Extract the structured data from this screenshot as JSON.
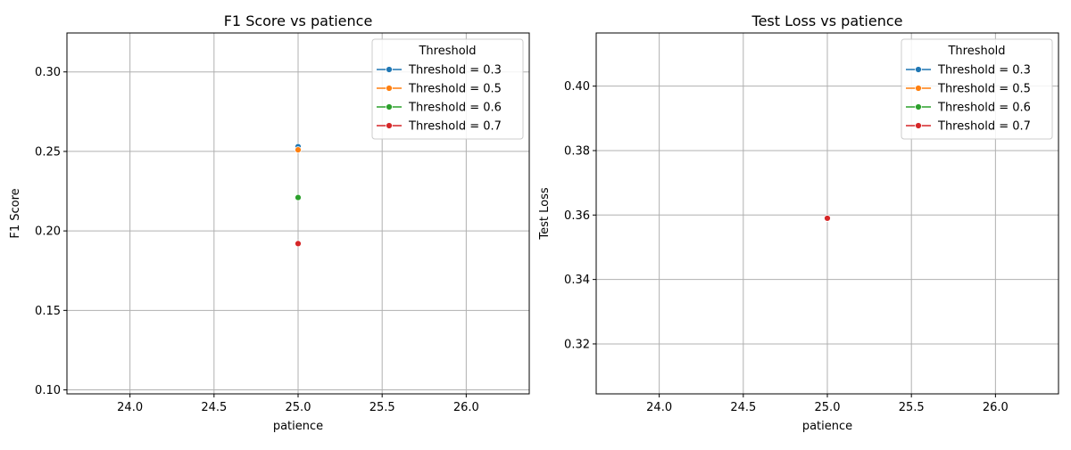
{
  "chart_data": [
    {
      "type": "line",
      "title": "F1 Score vs patience",
      "xlabel": "patience",
      "ylabel": "F1 Score",
      "xlim": [
        23.625,
        26.375
      ],
      "ylim": [
        0.0975,
        0.3245
      ],
      "xticks": [
        "24.0",
        "24.5",
        "25.0",
        "25.5",
        "26.0"
      ],
      "xtick_values": [
        24.0,
        24.5,
        25.0,
        25.5,
        26.0
      ],
      "yticks": [
        "0.10",
        "0.15",
        "0.20",
        "0.25",
        "0.30"
      ],
      "ytick_values": [
        0.1,
        0.15,
        0.2,
        0.25,
        0.3
      ],
      "grid": true,
      "legend": {
        "title": "Threshold",
        "placement": "top-right",
        "entries": [
          "Threshold = 0.3",
          "Threshold = 0.5",
          "Threshold = 0.6",
          "Threshold = 0.7"
        ]
      },
      "series": [
        {
          "name": "Threshold = 0.3",
          "color": "#1f77b4",
          "x": [
            25.0
          ],
          "y": [
            0.253
          ]
        },
        {
          "name": "Threshold = 0.5",
          "color": "#ff7f0e",
          "x": [
            25.0
          ],
          "y": [
            0.251
          ]
        },
        {
          "name": "Threshold = 0.6",
          "color": "#2ca02c",
          "x": [
            25.0
          ],
          "y": [
            0.221
          ]
        },
        {
          "name": "Threshold = 0.7",
          "color": "#d62728",
          "x": [
            25.0
          ],
          "y": [
            0.192
          ]
        }
      ]
    },
    {
      "type": "line",
      "title": "Test Loss vs patience",
      "xlabel": "patience",
      "ylabel": "Test Loss",
      "xlim": [
        23.625,
        26.375
      ],
      "ylim": [
        0.3045,
        0.4165
      ],
      "xticks": [
        "24.0",
        "24.5",
        "25.0",
        "25.5",
        "26.0"
      ],
      "xtick_values": [
        24.0,
        24.5,
        25.0,
        25.5,
        26.0
      ],
      "yticks": [
        "0.32",
        "0.34",
        "0.36",
        "0.38",
        "0.40"
      ],
      "ytick_values": [
        0.32,
        0.34,
        0.36,
        0.38,
        0.4
      ],
      "grid": true,
      "legend": {
        "title": "Threshold",
        "placement": "top-right",
        "entries": [
          "Threshold = 0.3",
          "Threshold = 0.5",
          "Threshold = 0.6",
          "Threshold = 0.7"
        ]
      },
      "series": [
        {
          "name": "Threshold = 0.3",
          "color": "#1f77b4",
          "x": [
            25.0
          ],
          "y": [
            0.359
          ]
        },
        {
          "name": "Threshold = 0.5",
          "color": "#ff7f0e",
          "x": [
            25.0
          ],
          "y": [
            0.359
          ]
        },
        {
          "name": "Threshold = 0.6",
          "color": "#2ca02c",
          "x": [
            25.0
          ],
          "y": [
            0.359
          ]
        },
        {
          "name": "Threshold = 0.7",
          "color": "#d62728",
          "x": [
            25.0
          ],
          "y": [
            0.359
          ]
        }
      ]
    }
  ]
}
